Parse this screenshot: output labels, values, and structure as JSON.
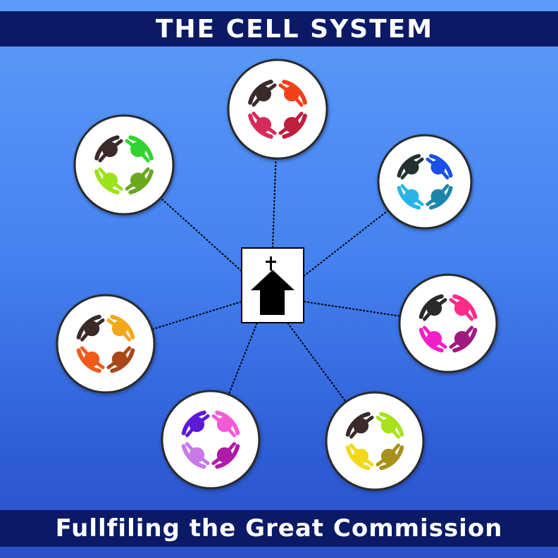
{
  "header": {
    "title": "THE CELL SYSTEM"
  },
  "footer": {
    "caption": "Fullfiling the Great Commission"
  },
  "colors": {
    "banner": "#0a1a66",
    "church": "#000000",
    "connector": "#000000"
  },
  "center": {
    "icon": "church-icon"
  },
  "cells": [
    {
      "id": "top",
      "colors": [
        "#3a2a2a",
        "#f2401a",
        "#d82a5c",
        "#c01f3c"
      ]
    },
    {
      "id": "upper-left",
      "colors": [
        "#3a2a2a",
        "#2fd42f",
        "#9be21a",
        "#6aa81e"
      ]
    },
    {
      "id": "upper-right",
      "colors": [
        "#223030",
        "#1a4fe8",
        "#28b4e6",
        "#1a86a8"
      ]
    },
    {
      "id": "right",
      "colors": [
        "#2a2a2a",
        "#ff2a8a",
        "#f020c8",
        "#a01a80"
      ]
    },
    {
      "id": "left",
      "colors": [
        "#3a2a2a",
        "#f2a81a",
        "#f25a1a",
        "#a8481a"
      ]
    },
    {
      "id": "lower-left",
      "colors": [
        "#5a1ad8",
        "#f25ad8",
        "#c87ae8",
        "#b01aa8"
      ]
    },
    {
      "id": "lower-right",
      "colors": [
        "#3a2a2a",
        "#a8e21a",
        "#f2d81a",
        "#a8901a"
      ]
    }
  ]
}
